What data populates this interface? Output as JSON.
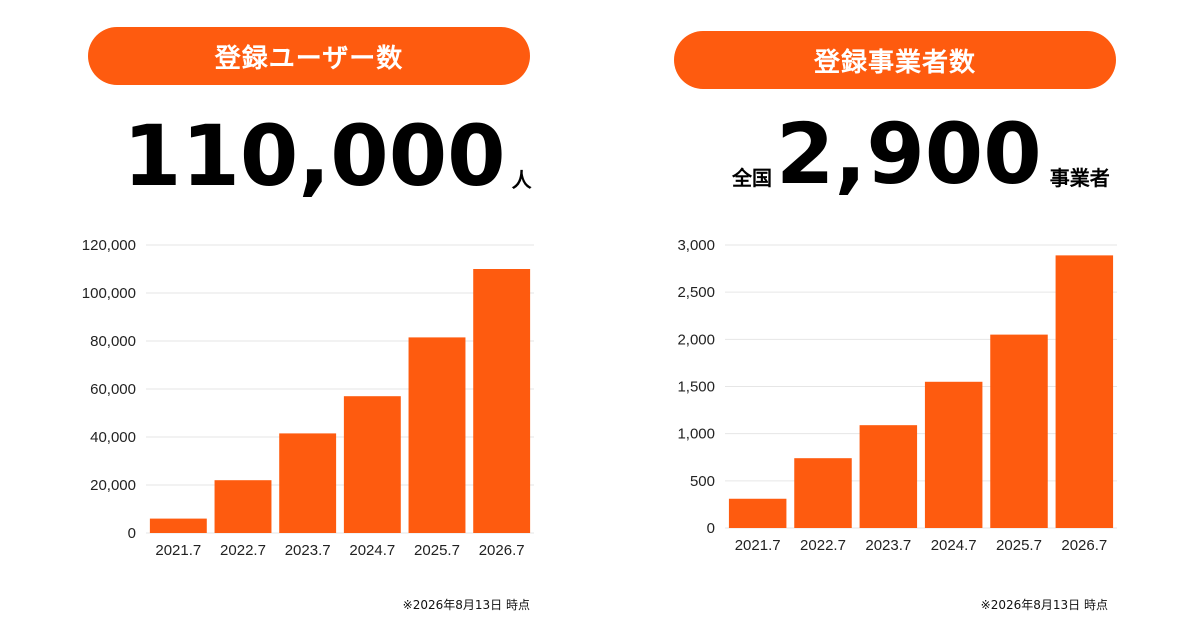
{
  "theme": {
    "accent": "#fe5b0f",
    "grid": "#e6e6e6",
    "text": "#000000"
  },
  "left": {
    "title": "登録ユーザー数",
    "headline": {
      "number": "110,000",
      "unit": "人"
    },
    "footnote": "※2026年8月13日 時点"
  },
  "right": {
    "title": "登録事業者数",
    "headline": {
      "prefix": "全国",
      "number": "2,900",
      "suffix": "事業者"
    },
    "footnote": "※2026年8月13日 時点"
  },
  "chart_data": [
    {
      "type": "bar",
      "title": "登録ユーザー数",
      "categories": [
        "2021.7",
        "2022.7",
        "2023.7",
        "2024.7",
        "2025.7",
        "2026.7"
      ],
      "values": [
        6000,
        22000,
        41500,
        57000,
        81500,
        110000
      ],
      "ylim": [
        0,
        120000
      ],
      "yticks": [
        "0",
        "20,000",
        "40,000",
        "60,000",
        "80,000",
        "100,000",
        "120,000"
      ],
      "ytick_values": [
        0,
        20000,
        40000,
        60000,
        80000,
        100000,
        120000
      ],
      "grid": true,
      "xlabel": "",
      "ylabel": ""
    },
    {
      "type": "bar",
      "title": "登録事業者数",
      "categories": [
        "2021.7",
        "2022.7",
        "2023.7",
        "2024.7",
        "2025.7",
        "2026.7"
      ],
      "values": [
        310,
        740,
        1090,
        1550,
        2050,
        2890
      ],
      "ylim": [
        0,
        3000
      ],
      "yticks": [
        "0",
        "500",
        "1,000",
        "1,500",
        "2,000",
        "2,500",
        "3,000"
      ],
      "ytick_values": [
        0,
        500,
        1000,
        1500,
        2000,
        2500,
        3000
      ],
      "grid": true,
      "xlabel": "",
      "ylabel": ""
    }
  ]
}
